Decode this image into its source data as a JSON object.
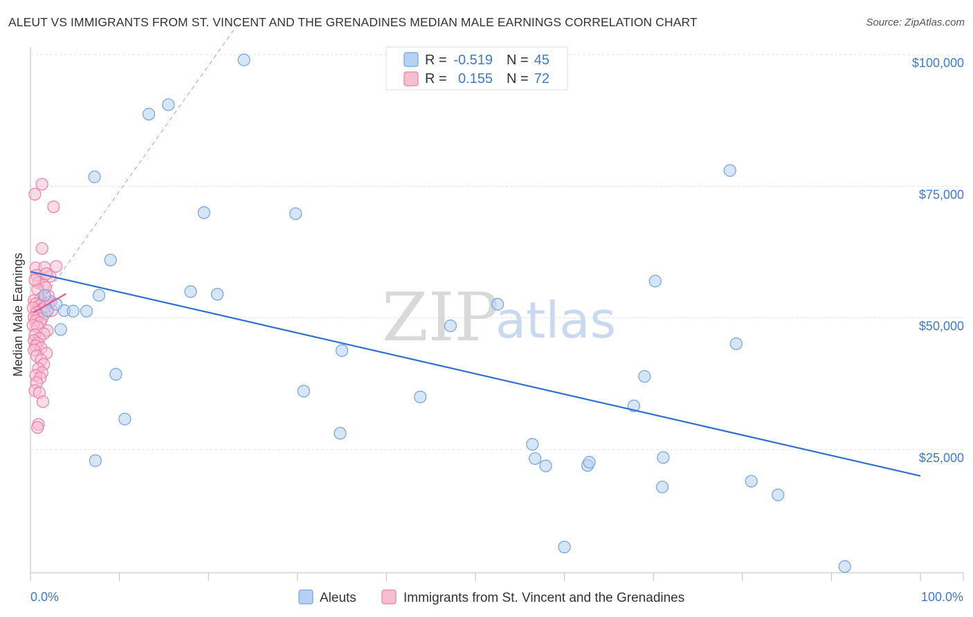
{
  "header": {
    "title": "ALEUT VS IMMIGRANTS FROM ST. VINCENT AND THE GRENADINES MEDIAN MALE EARNINGS CORRELATION CHART",
    "source": "Source: ZipAtlas.com"
  },
  "legend": {
    "row1": {
      "r_label": "R =",
      "r_value": "-0.519",
      "n_label": "N =",
      "n_value": "45"
    },
    "row2": {
      "r_label": "R =",
      "r_value": "0.155",
      "n_label": "N =",
      "n_value": "72"
    }
  },
  "watermark": {
    "zip": "ZIP",
    "atlas": "atlas"
  },
  "chart_data": {
    "type": "scatter",
    "title": "ALEUT VS IMMIGRANTS FROM ST. VINCENT AND THE GRENADINES MEDIAN MALE EARNINGS CORRELATION CHART",
    "xlabel": "",
    "ylabel": "Median Male Earnings",
    "xlim": [
      0,
      100
    ],
    "ylim": [
      0,
      105000
    ],
    "x_tick_labels": [
      "0.0%",
      "100.0%"
    ],
    "y_ticks": [
      25000,
      50000,
      75000,
      100000
    ],
    "y_tick_labels": [
      "$25,000",
      "$50,000",
      "$75,000",
      "$100,000"
    ],
    "grid": true,
    "colors": {
      "aleut": "#6fa3e0",
      "aleut_fill": "#b6d1f1",
      "svg": "#ef7fa5",
      "svg_fill": "#f8bdd1",
      "aleut_line": "#2e6fd0",
      "svg_line": "#e0588c"
    },
    "series": [
      {
        "name": "Aleuts",
        "color": "#6fa3e0",
        "r": -0.519,
        "n": 45,
        "trend": {
          "x": [
            0,
            100
          ],
          "y": [
            58800,
            20000
          ]
        },
        "points": [
          [
            24.0,
            99000
          ],
          [
            15.5,
            90500
          ],
          [
            13.3,
            88700
          ],
          [
            7.2,
            76800
          ],
          [
            19.5,
            70000
          ],
          [
            29.8,
            69800
          ],
          [
            9.0,
            61000
          ],
          [
            7.7,
            54300
          ],
          [
            18.0,
            55000
          ],
          [
            21.0,
            54500
          ],
          [
            1.6,
            54300
          ],
          [
            2.9,
            52600
          ],
          [
            3.8,
            51400
          ],
          [
            4.8,
            51300
          ],
          [
            6.3,
            51300
          ],
          [
            1.9,
            51400
          ],
          [
            3.4,
            47800
          ],
          [
            47.2,
            48500
          ],
          [
            52.5,
            52600
          ],
          [
            70.2,
            57000
          ],
          [
            79.3,
            45100
          ],
          [
            78.6,
            78000
          ],
          [
            35.0,
            43800
          ],
          [
            9.6,
            39300
          ],
          [
            69.0,
            38900
          ],
          [
            30.7,
            36100
          ],
          [
            43.8,
            35000
          ],
          [
            67.8,
            33300
          ],
          [
            10.6,
            30800
          ],
          [
            34.8,
            28100
          ],
          [
            56.4,
            26000
          ],
          [
            7.3,
            22900
          ],
          [
            56.7,
            23300
          ],
          [
            57.9,
            21900
          ],
          [
            62.6,
            22000
          ],
          [
            62.8,
            22600
          ],
          [
            71.1,
            23500
          ],
          [
            71.0,
            17900
          ],
          [
            81.0,
            19000
          ],
          [
            84.0,
            16400
          ],
          [
            60.0,
            6500
          ],
          [
            91.5,
            2800
          ]
        ]
      },
      {
        "name": "Immigrants from St. Vincent and the Grenadines",
        "color": "#ef7fa5",
        "r": 0.155,
        "n": 72,
        "trend": {
          "x": [
            0.3,
            4.0
          ],
          "y": [
            51000,
            54600
          ]
        },
        "trend_ext": {
          "x": [
            0.3,
            23.4
          ],
          "y": [
            51000,
            106000
          ]
        },
        "points": [
          [
            1.3,
            75400
          ],
          [
            0.5,
            73500
          ],
          [
            2.6,
            71100
          ],
          [
            1.3,
            63200
          ],
          [
            2.9,
            59800
          ],
          [
            0.6,
            59500
          ],
          [
            1.6,
            59600
          ],
          [
            0.7,
            58100
          ],
          [
            2.2,
            57900
          ],
          [
            1.8,
            58400
          ],
          [
            0.9,
            56700
          ],
          [
            1.5,
            56200
          ],
          [
            1.7,
            55800
          ],
          [
            0.8,
            55400
          ],
          [
            2.0,
            54200
          ],
          [
            1.1,
            53600
          ],
          [
            0.4,
            53300
          ],
          [
            1.4,
            53100
          ],
          [
            2.1,
            52900
          ],
          [
            0.6,
            52700
          ],
          [
            1.0,
            52300
          ],
          [
            0.3,
            51900
          ],
          [
            1.2,
            51600
          ],
          [
            2.4,
            51400
          ],
          [
            0.7,
            51000
          ],
          [
            1.6,
            50800
          ],
          [
            0.9,
            50400
          ],
          [
            0.4,
            50100
          ],
          [
            1.3,
            49900
          ],
          [
            0.6,
            49500
          ],
          [
            1.1,
            49100
          ],
          [
            0.3,
            48600
          ],
          [
            0.8,
            48300
          ],
          [
            1.9,
            47600
          ],
          [
            1.5,
            47000
          ],
          [
            0.5,
            46800
          ],
          [
            1.0,
            46100
          ],
          [
            0.4,
            45700
          ],
          [
            0.8,
            45200
          ],
          [
            0.6,
            44700
          ],
          [
            1.2,
            44300
          ],
          [
            0.4,
            43900
          ],
          [
            1.8,
            43300
          ],
          [
            0.7,
            42800
          ],
          [
            1.2,
            42000
          ],
          [
            1.5,
            41200
          ],
          [
            0.9,
            40400
          ],
          [
            1.3,
            39600
          ],
          [
            0.6,
            39100
          ],
          [
            1.1,
            38600
          ],
          [
            0.7,
            37700
          ],
          [
            0.5,
            36200
          ],
          [
            1.0,
            35800
          ],
          [
            1.4,
            34100
          ],
          [
            0.9,
            29800
          ],
          [
            0.8,
            29200
          ],
          [
            1.7,
            52200
          ],
          [
            2.3,
            53100
          ],
          [
            0.5,
            57200
          ]
        ]
      }
    ]
  },
  "bottom_legend": {
    "items": [
      {
        "label": "Aleuts"
      },
      {
        "label": "Immigrants from St. Vincent and the Grenadines"
      }
    ]
  }
}
